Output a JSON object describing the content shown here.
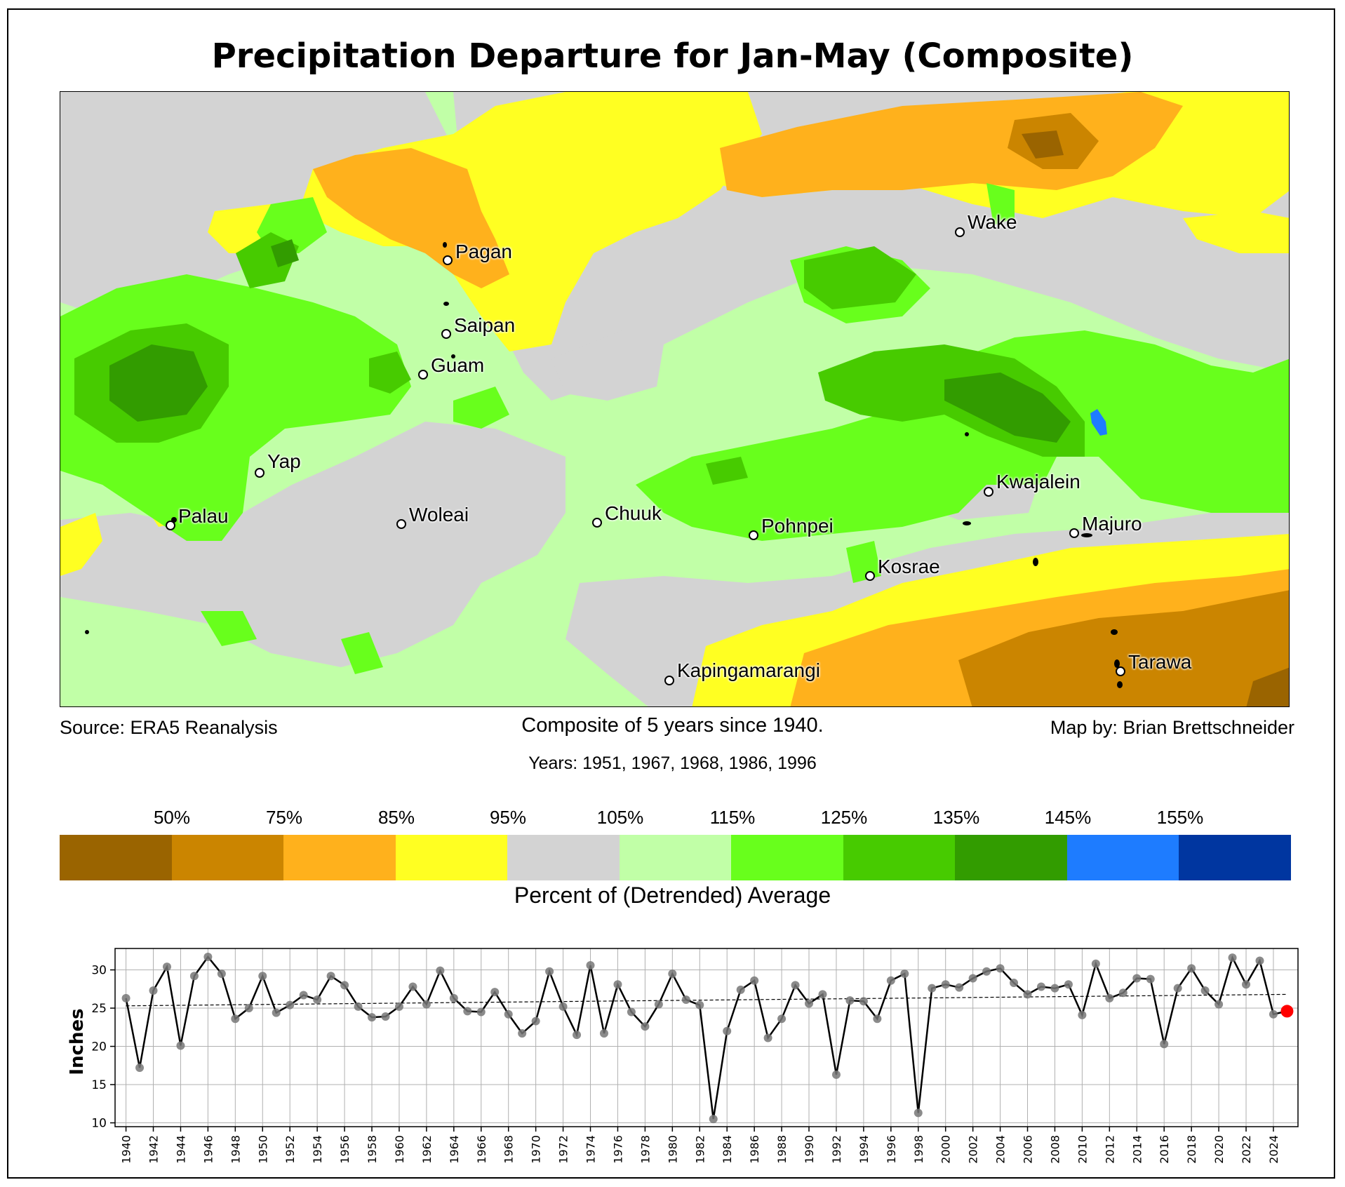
{
  "title": "Precipitation Departure for Jan-May (Composite)",
  "source": "Source: ERA5 Reanalysis",
  "composite_note": "Composite of 5 years since 1940.",
  "years_note": "Years: 1951, 1967, 1968, 1986, 1996",
  "credit": "Map by: Brian Brettschneider",
  "map": {
    "stations": [
      {
        "name": "Pagan"
      },
      {
        "name": "Saipan"
      },
      {
        "name": "Guam"
      },
      {
        "name": "Wake"
      },
      {
        "name": "Yap"
      },
      {
        "name": "Palau"
      },
      {
        "name": "Woleai"
      },
      {
        "name": "Chuuk"
      },
      {
        "name": "Pohnpei"
      },
      {
        "name": "Kwajalein"
      },
      {
        "name": "Majuro"
      },
      {
        "name": "Kosrae"
      },
      {
        "name": "Kapingamarangi"
      },
      {
        "name": "Tarawa"
      }
    ]
  },
  "colorbar": {
    "title": "Percent of (Detrended) Average",
    "labels": [
      "50%",
      "75%",
      "85%",
      "95%",
      "105%",
      "115%",
      "125%",
      "135%",
      "145%",
      "155%"
    ],
    "colors": [
      "#9a6400",
      "#cb8500",
      "#ffb11c",
      "#ffff22",
      "#d3d3d3",
      "#c1ffa7",
      "#68ff1c",
      "#47cb00",
      "#329c00",
      "#1e7cff",
      "#0036a0"
    ]
  },
  "chart_data": {
    "type": "line",
    "ylabel": "Inches",
    "ylim": [
      9.5,
      32.8
    ],
    "xlim": [
      1939.2,
      2025.8
    ],
    "yticks": [
      10,
      15,
      20,
      25,
      30
    ],
    "xtick_labels": [
      "1940",
      "1942",
      "1944",
      "1946",
      "1948",
      "1950",
      "1952",
      "1954",
      "1956",
      "1958",
      "1960",
      "1962",
      "1964",
      "1966",
      "1968",
      "1970",
      "1972",
      "1974",
      "1976",
      "1978",
      "1980",
      "1982",
      "1984",
      "1986",
      "1988",
      "1990",
      "1992",
      "1994",
      "1996",
      "1998",
      "2000",
      "2002",
      "2004",
      "2006",
      "2008",
      "2010",
      "2012",
      "2014",
      "2016",
      "2018",
      "2020",
      "2022",
      "2024"
    ],
    "grid": true,
    "x": [
      1940,
      1941,
      1942,
      1943,
      1944,
      1945,
      1946,
      1947,
      1948,
      1949,
      1950,
      1951,
      1952,
      1953,
      1954,
      1955,
      1956,
      1957,
      1958,
      1959,
      1960,
      1961,
      1962,
      1963,
      1964,
      1965,
      1966,
      1967,
      1968,
      1969,
      1970,
      1971,
      1972,
      1973,
      1974,
      1975,
      1976,
      1977,
      1978,
      1979,
      1980,
      1981,
      1982,
      1983,
      1984,
      1985,
      1986,
      1987,
      1988,
      1989,
      1990,
      1991,
      1992,
      1993,
      1994,
      1995,
      1996,
      1997,
      1998,
      1999,
      2000,
      2001,
      2002,
      2003,
      2004,
      2005,
      2006,
      2007,
      2008,
      2009,
      2010,
      2011,
      2012,
      2013,
      2014,
      2015,
      2016,
      2017,
      2018,
      2019,
      2020,
      2021,
      2022,
      2023,
      2024,
      2025
    ],
    "values": [
      26.3,
      17.2,
      27.3,
      30.4,
      20.1,
      29.2,
      31.7,
      29.5,
      23.6,
      25.0,
      29.2,
      24.4,
      25.4,
      26.7,
      26.1,
      29.2,
      28.0,
      25.2,
      23.8,
      23.9,
      25.2,
      27.8,
      25.5,
      29.9,
      26.3,
      24.6,
      24.5,
      27.1,
      24.2,
      21.7,
      23.3,
      29.8,
      25.2,
      21.5,
      30.6,
      21.7,
      28.1,
      24.5,
      22.6,
      25.5,
      29.5,
      26.1,
      25.4,
      10.5,
      22.0,
      27.4,
      28.6,
      21.1,
      23.6,
      28.0,
      25.6,
      26.8,
      16.3,
      26.0,
      25.9,
      23.6,
      28.6,
      29.5,
      11.3,
      27.6,
      28.1,
      27.7,
      28.9,
      29.8,
      30.2,
      28.3,
      26.8,
      27.8,
      27.6,
      28.1,
      24.1,
      30.8,
      26.3,
      27.0,
      28.9,
      28.8,
      20.3,
      27.6,
      30.2,
      27.3,
      25.5,
      31.6,
      28.1,
      31.2,
      24.2,
      24.6
    ],
    "trend": {
      "x": [
        1940,
        2025
      ],
      "y": [
        25.3,
        26.8
      ]
    },
    "highlight": {
      "x": 2025,
      "value": 24.6
    }
  }
}
